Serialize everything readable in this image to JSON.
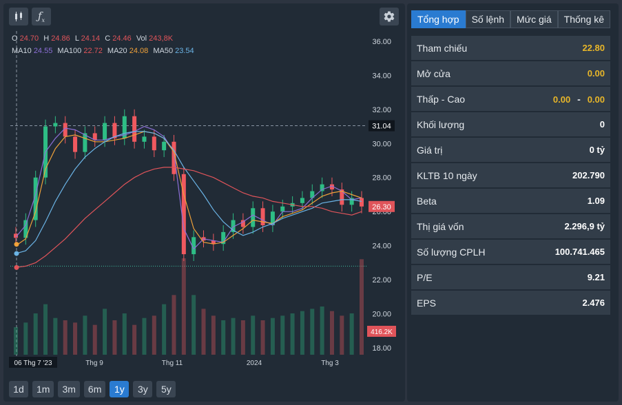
{
  "chart_panel": {
    "ohlc": {
      "o_label": "O",
      "o": "24.70",
      "h_label": "H",
      "h": "24.86",
      "l_label": "L",
      "l": "24.14",
      "c_label": "C",
      "c": "24.46",
      "vol_label": "Vol",
      "vol": "243,8K"
    },
    "ma": {
      "ma10_label": "MA10",
      "ma10": "24.55",
      "ma100_label": "MA100",
      "ma100": "22.72",
      "ma20_label": "MA20",
      "ma20": "24.08",
      "ma50_label": "MA50",
      "ma50": "23.54"
    },
    "range_buttons": [
      "1d",
      "1m",
      "3m",
      "6m",
      "1y",
      "3y",
      "5y"
    ],
    "active_range": "1y"
  },
  "chart_data": {
    "type": "candlestick",
    "y_ticks": [
      "36.00",
      "34.00",
      "32.00",
      "30.00",
      "28.00",
      "26.00",
      "24.00",
      "22.00",
      "20.00",
      "18.00"
    ],
    "ylim": [
      17.6,
      36.6
    ],
    "x_ticks": [
      "06 Thg 7 '23",
      "Thg 9",
      "Thg 11",
      "2024",
      "Thg 3"
    ],
    "crosshair_price": "31.04",
    "last_price": "26.30",
    "last_volume": "416.2K",
    "reference_price": 22.8,
    "colors": {
      "up": "#2ebd85",
      "down": "#f0595f",
      "ma10": "#8c6fd6",
      "ma20": "#f0a23a",
      "ma50": "#6bb4e6",
      "ma100": "#e0545a",
      "ref_line": "#3fbf9f"
    },
    "series": [
      {
        "name": "MA10",
        "values": [
          24.5,
          25.2,
          27,
          29.5,
          30.3,
          30.9,
          30.8,
          30.5,
          30.2,
          30.2,
          30.4,
          30.5,
          30.7,
          31,
          30.8,
          30.4,
          29.5,
          25,
          23.8,
          24.4,
          24.3,
          24.2,
          25.1,
          25.4,
          25.8,
          25.5,
          25.2,
          26,
          26,
          26.2,
          26.8,
          27.3,
          27.5,
          27.2,
          26.7,
          26.8
        ]
      },
      {
        "name": "MA20",
        "values": [
          24,
          24.4,
          26,
          28.5,
          29.7,
          30.4,
          30.5,
          30.3,
          30.1,
          30.1,
          30.2,
          30.3,
          30.5,
          30.7,
          30.6,
          30.3,
          29.5,
          27,
          25,
          24.2,
          24.1,
          24.2,
          24.6,
          25,
          25.5,
          25.4,
          25.3,
          25.7,
          25.9,
          26.1,
          26.5,
          26.9,
          27.1,
          27.2,
          27,
          26.8
        ]
      },
      {
        "name": "MA50",
        "values": [
          23.54,
          23.7,
          24.3,
          25.4,
          26.6,
          27.6,
          28.5,
          29.2,
          29.7,
          30.1,
          30.4,
          30.6,
          30.7,
          30.7,
          30.6,
          30.3,
          29.6,
          28.6,
          27.8,
          27,
          26.1,
          25.4,
          24.9,
          24.6,
          24.8,
          25.1,
          25.3,
          25.6,
          25.8,
          26,
          26.2,
          26.5,
          26.6,
          26.7,
          26.7,
          26.6
        ]
      },
      {
        "name": "MA100",
        "values": [
          22.72,
          22.8,
          23,
          23.4,
          23.9,
          24.4,
          25,
          25.6,
          26.1,
          26.6,
          27.1,
          27.6,
          28,
          28.3,
          28.5,
          28.6,
          28.6,
          28.5,
          28.4,
          28.2,
          28,
          27.7,
          27.4,
          27.1,
          26.9,
          26.8,
          26.6,
          26.5,
          26.4,
          26.3,
          26.3,
          26.2,
          26,
          25.9,
          25.8,
          26
        ]
      },
      {
        "name": "Close",
        "values": [
          24.46,
          25.5,
          28,
          31,
          31.2,
          30.4,
          29.5,
          30.6,
          30.2,
          31.2,
          30.3,
          31.6,
          30.1,
          30.4,
          29.6,
          30.1,
          28.2,
          23.5,
          24.5,
          24.3,
          24.1,
          24.8,
          25.5,
          25.1,
          26.2,
          25.2,
          26,
          26.3,
          26.5,
          26.8,
          27.2,
          27.6,
          27.3,
          26.4,
          26.8,
          26.3
        ]
      },
      {
        "name": "Volume",
        "values": [
          120,
          140,
          180,
          220,
          160,
          150,
          140,
          170,
          130,
          200,
          150,
          180,
          130,
          160,
          170,
          220,
          260,
          420,
          260,
          200,
          170,
          150,
          160,
          150,
          170,
          150,
          160,
          170,
          180,
          190,
          200,
          210,
          190,
          170,
          180,
          416
        ]
      }
    ]
  },
  "info_panel": {
    "tabs": [
      "Tổng hợp",
      "Số lệnh",
      "Mức giá",
      "Thống kê"
    ],
    "active_tab": "Tổng hợp",
    "rows": {
      "ref": {
        "label": "Tham chiếu",
        "value": "22.80"
      },
      "open": {
        "label": "Mở cửa",
        "value": "0.00"
      },
      "lowhigh": {
        "label": "Thấp - Cao",
        "low": "0.00",
        "sep": "-",
        "high": "0.00"
      },
      "volume": {
        "label": "Khối lượng",
        "value": "0"
      },
      "value": {
        "label": "Giá trị",
        "value": "0 tỷ"
      },
      "avg10": {
        "label": "KLTB 10 ngày",
        "value": "202.790"
      },
      "beta": {
        "label": "Beta",
        "value": "1.09"
      },
      "mcap": {
        "label": "Thị giá vốn",
        "value": "2.296,9 tỷ"
      },
      "shares": {
        "label": "Số lượng CPLH",
        "value": "100.741.465"
      },
      "pe": {
        "label": "P/E",
        "value": "9.21"
      },
      "eps": {
        "label": "EPS",
        "value": "2.476"
      }
    }
  }
}
